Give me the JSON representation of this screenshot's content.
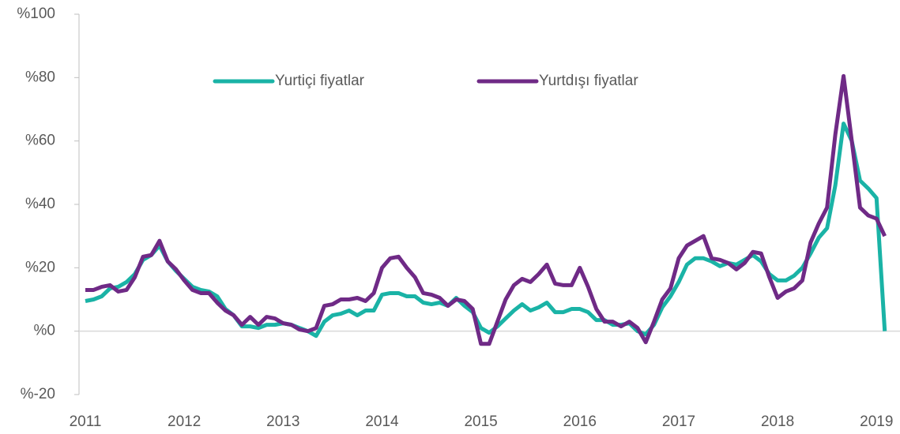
{
  "chart_data": {
    "type": "line",
    "categories": [
      "2011",
      null,
      null,
      null,
      null,
      null,
      null,
      null,
      null,
      null,
      null,
      null,
      "2012",
      null,
      null,
      null,
      null,
      null,
      null,
      null,
      null,
      null,
      null,
      null,
      "2013",
      null,
      null,
      null,
      null,
      null,
      null,
      null,
      null,
      null,
      null,
      null,
      "2014",
      null,
      null,
      null,
      null,
      null,
      null,
      null,
      null,
      null,
      null,
      null,
      "2015",
      null,
      null,
      null,
      null,
      null,
      null,
      null,
      null,
      null,
      null,
      null,
      "2016",
      null,
      null,
      null,
      null,
      null,
      null,
      null,
      null,
      null,
      null,
      null,
      "2017",
      null,
      null,
      null,
      null,
      null,
      null,
      null,
      null,
      null,
      null,
      null,
      "2018",
      null,
      null,
      null,
      null,
      null,
      null,
      null,
      null,
      null,
      null,
      null,
      "2019",
      null
    ],
    "series": [
      {
        "name": "Yurtiçi fiyatlar",
        "color": "#1ab3a6",
        "values": [
          9.5,
          10,
          11,
          13.5,
          14,
          15.5,
          18,
          22.5,
          24,
          27,
          22,
          19,
          16.5,
          14,
          13,
          12.5,
          11,
          7,
          5,
          1.5,
          1.5,
          1,
          2,
          2,
          2.5,
          2,
          1,
          0,
          -1.5,
          3,
          5,
          5.5,
          6.5,
          5,
          6.5,
          6.5,
          11.5,
          12,
          12,
          11,
          11,
          9,
          8.5,
          9,
          8,
          10.5,
          8,
          6,
          1,
          -0.5,
          1.5,
          4,
          6.5,
          8.5,
          6.5,
          7.5,
          9,
          6,
          6,
          7,
          7,
          6,
          3.5,
          3.5,
          2,
          2,
          2.5,
          0,
          -1,
          2,
          7.5,
          11,
          15.5,
          21,
          23,
          23,
          22,
          20.5,
          21.5,
          21,
          22.5,
          24,
          22,
          18,
          16,
          16,
          17.5,
          20,
          24.5,
          29.5,
          32.5,
          46,
          65.5,
          60,
          47.5,
          45,
          42,
          0
        ]
      },
      {
        "name": "Yurtdışı fiyatlar",
        "color": "#6f2a86",
        "values": [
          13,
          13,
          14,
          14.5,
          12.5,
          13,
          17,
          23.5,
          24,
          28.5,
          22,
          19.5,
          16,
          13,
          12,
          12,
          9,
          6.5,
          5,
          2,
          4.5,
          2,
          4.5,
          4,
          2.5,
          2,
          0.5,
          0,
          1,
          8,
          8.5,
          10,
          10,
          10.5,
          9.5,
          12,
          20,
          23,
          23.5,
          20,
          17,
          12,
          11.5,
          10.5,
          8,
          10,
          9.5,
          7,
          -4,
          -4,
          3,
          10,
          14.5,
          16.5,
          15.5,
          18,
          21,
          15,
          14.5,
          14.5,
          20,
          14,
          7,
          3,
          3,
          1.5,
          3,
          1,
          -3.5,
          3,
          10,
          13.5,
          23,
          27,
          28.5,
          30,
          23,
          22.5,
          21.5,
          19.5,
          21.5,
          25,
          24.5,
          17,
          10.5,
          12.5,
          13.5,
          16,
          28,
          34,
          39,
          62,
          80.5,
          60,
          39,
          36.5,
          35.5,
          30
        ]
      }
    ],
    "ylim": [
      -20,
      100
    ],
    "yticks": [
      {
        "value": -20,
        "label": "%-20"
      },
      {
        "value": 0,
        "label": "%0"
      },
      {
        "value": 20,
        "label": "%20"
      },
      {
        "value": 40,
        "label": "%40"
      },
      {
        "value": 60,
        "label": "%60"
      },
      {
        "value": 80,
        "label": "%80"
      },
      {
        "value": 100,
        "label": "%100"
      }
    ],
    "grid": false,
    "legend": "top"
  }
}
